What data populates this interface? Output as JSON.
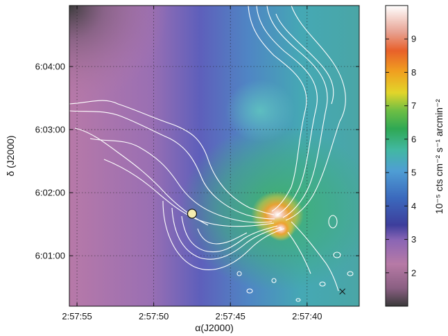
{
  "chart_data": {
    "type": "heatmap",
    "xlabel": "α(J2000)",
    "ylabel": "δ (J2000)",
    "x_ticks": [
      "2:57:55",
      "2:57:50",
      "2:57:45",
      "2:57:40"
    ],
    "y_ticks": [
      "6:01:00",
      "6:02:00",
      "6:03:00",
      "6:04:00"
    ],
    "x_range": [
      "2:57:55.5",
      "2:57:36.6"
    ],
    "y_range": [
      "6:00:12",
      "6:04:58"
    ],
    "grid": true,
    "colorbar": {
      "label": "10⁻⁵ cts cm⁻² s⁻¹ arcmin⁻²",
      "ticks": [
        2,
        3,
        4,
        5,
        6,
        7,
        8,
        9
      ],
      "range": [
        1.0,
        10.0
      ]
    },
    "background_gradient": {
      "corner_top_left_value": 1.2,
      "west_value": 2.0,
      "center_value": 3.2,
      "east_value": 4.0
    },
    "emission_peaks": [
      {
        "ra": "2:57:41.6",
        "dec": "6:01:25",
        "value": 8.8
      },
      {
        "ra": "2:57:41.3",
        "dec": "6:01:15",
        "value": 8.0
      },
      {
        "ra": "2:57:42.6",
        "dec": "6:02:55",
        "value": 4.2
      }
    ],
    "markers": [
      {
        "shape": "circle",
        "ra": "2:57:47.5",
        "dec": "6:01:40"
      },
      {
        "shape": "x",
        "ra": "2:57:37.7",
        "dec": "6:00:26"
      }
    ],
    "contours": "radio continuum (white)"
  }
}
